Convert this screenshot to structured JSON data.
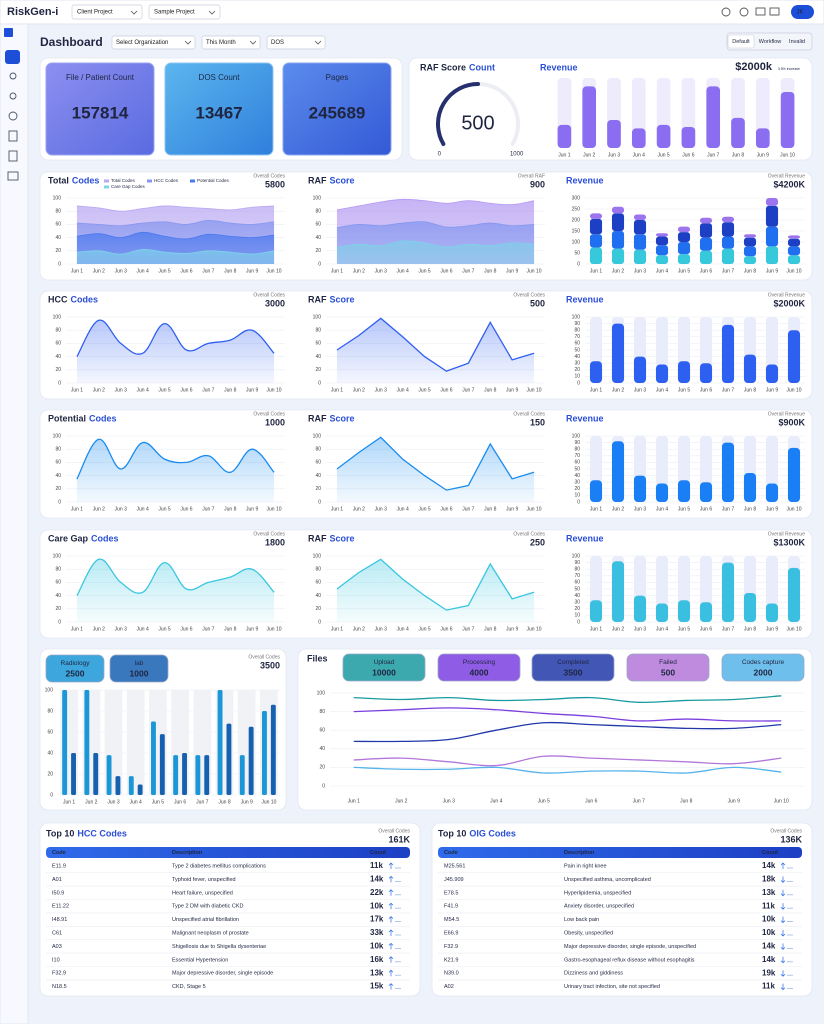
{
  "header": {
    "logo": "RiskGen-i",
    "client": "Client Project",
    "project": "Sample Project",
    "user": "JK"
  },
  "toolbar": {
    "title": "Dashboard",
    "filters": [
      "Select Organization",
      "This Month",
      "DOS"
    ],
    "views": [
      "Default",
      "Workflow",
      "Invalid"
    ],
    "active_view": 0
  },
  "kpis": [
    {
      "label": "File / Patient Count",
      "value": 157814
    },
    {
      "label": "DOS Count",
      "value": 13467
    },
    {
      "label": "Pages",
      "value": 245689
    }
  ],
  "chart_data": [
    {
      "type": "gauge",
      "title": "RAF Score",
      "title_accent": "Count",
      "value": 500,
      "ylim": [
        0,
        1000
      ],
      "yticks": [
        0,
        1000
      ],
      "color": "#27306e"
    },
    {
      "type": "bar",
      "title_accent": "Revenue",
      "value_text": "$2000k",
      "note": "3.5% increase",
      "categories": [
        "Jun 1",
        "Jun 2",
        "Jun 3",
        "Jun 4",
        "Jun 5",
        "Jun 6",
        "Jun 7",
        "Jun 8",
        "Jun 9",
        "Jun 10"
      ],
      "values": [
        33,
        88,
        40,
        28,
        33,
        30,
        88,
        43,
        28,
        80
      ],
      "ylim": [
        0,
        100
      ],
      "color": "#8a6df0"
    },
    {
      "type": "area",
      "smooth": true,
      "title": "Total",
      "title_accent": "Codes",
      "overall_label": "Overall Codes",
      "overall_value": 5800,
      "legend": true,
      "grid": true,
      "categories": [
        "Jun 1",
        "Jun 2",
        "Jun 3",
        "Jun 4",
        "Jun 5",
        "Jun 6",
        "Jun 7",
        "Jun 8",
        "Jun 9",
        "Jun 10"
      ],
      "ylim": [
        0,
        100
      ],
      "yticks": [
        0,
        20,
        40,
        60,
        80,
        100
      ],
      "series": [
        {
          "name": "Total Codes",
          "color": "#b9a8f2",
          "values": [
            88,
            85,
            80,
            84,
            88,
            86,
            84,
            82,
            86,
            88
          ]
        },
        {
          "name": "HCC Codes",
          "color": "#8797ef",
          "values": [
            62,
            60,
            58,
            62,
            64,
            60,
            66,
            62,
            60,
            64
          ]
        },
        {
          "name": "Potential Codes",
          "color": "#4a78ee",
          "values": [
            42,
            46,
            40,
            48,
            42,
            38,
            45,
            42,
            40,
            44
          ]
        },
        {
          "name": "Care Gap Codes",
          "color": "#7fd3ea",
          "values": [
            18,
            20,
            15,
            22,
            18,
            16,
            20,
            18,
            15,
            20
          ]
        }
      ]
    },
    {
      "type": "area",
      "smooth": true,
      "title": "RAF",
      "title_accent": "Score",
      "overall_label": "Overall RAF",
      "overall_value": 900,
      "grid": true,
      "categories": [
        "Jun 1",
        "Jun 2",
        "Jun 3",
        "Jun 4",
        "Jun 5",
        "Jun 6",
        "Jun 7",
        "Jun 8",
        "Jun 9",
        "Jun 10"
      ],
      "ylim": [
        0,
        100
      ],
      "yticks": [
        0,
        20,
        40,
        60,
        80,
        100
      ],
      "series": [
        {
          "color": "#b39af2",
          "values": [
            82,
            88,
            94,
            98,
            96,
            92,
            96,
            92,
            90,
            96
          ]
        },
        {
          "color": "#8497ef",
          "values": [
            55,
            60,
            58,
            62,
            64,
            56,
            58,
            62,
            58,
            60
          ]
        },
        {
          "color": "#7fd0e8",
          "values": [
            25,
            30,
            28,
            35,
            32,
            26,
            30,
            28,
            32,
            30
          ]
        }
      ]
    },
    {
      "type": "stacked_bar",
      "title_accent": "Revenue",
      "overall_label": "Overall Revenue",
      "overall_value": "$4200K",
      "grid": true,
      "categories": [
        "Jun 1",
        "Jun 2",
        "Jun 3",
        "Jun 4",
        "Jun 5",
        "Jun 6",
        "Jun 7",
        "Jun 8",
        "Jun 9",
        "Jun 10"
      ],
      "ylim": [
        0,
        300
      ],
      "yticks": [
        0,
        50,
        100,
        150,
        200,
        250,
        300
      ],
      "series": [
        {
          "color": "#38c8dc",
          "values": [
            75,
            70,
            65,
            40,
            45,
            60,
            70,
            35,
            80,
            40
          ]
        },
        {
          "color": "#1f6ff0",
          "values": [
            60,
            80,
            70,
            45,
            55,
            60,
            55,
            45,
            90,
            40
          ]
        },
        {
          "color": "#1d3fc4",
          "values": [
            70,
            80,
            65,
            40,
            45,
            65,
            65,
            40,
            95,
            35
          ]
        },
        {
          "color": "#9b74ee",
          "values": [
            25,
            30,
            25,
            15,
            25,
            25,
            25,
            15,
            35,
            15
          ]
        }
      ]
    },
    {
      "type": "area",
      "smooth": true,
      "title": "HCC",
      "title_accent": "Codes",
      "overall_label": "Overall Codes",
      "overall_value": 3000,
      "grid": true,
      "categories": [
        "Jun 1",
        "Jun 2",
        "Jun 3",
        "Jun 4",
        "Jun 5",
        "Jun 6",
        "Jun 7",
        "Jun 8",
        "Jun 9",
        "Jun 10"
      ],
      "ylim": [
        0,
        100
      ],
      "yticks": [
        0,
        20,
        40,
        60,
        80,
        100
      ],
      "series": [
        {
          "color": "#2f5ff0",
          "values": [
            40,
            95,
            60,
            45,
            90,
            50,
            60,
            65,
            80,
            45
          ]
        }
      ]
    },
    {
      "type": "area",
      "smooth": false,
      "title": "RAF",
      "title_accent": "Score",
      "overall_label": "Overall Codes",
      "overall_value": 500,
      "grid": true,
      "categories": [
        "Jun 1",
        "Jun 2",
        "Jun 3",
        "Jun 4",
        "Jun 5",
        "Jun 6",
        "Jun 7",
        "Jun 8",
        "Jun 9",
        "Jun 10"
      ],
      "ylim": [
        0,
        100
      ],
      "yticks": [
        0,
        20,
        40,
        60,
        80,
        100
      ],
      "series": [
        {
          "color": "#2f5ff0",
          "values": [
            50,
            72,
            98,
            70,
            40,
            18,
            30,
            92,
            35,
            45
          ]
        }
      ]
    },
    {
      "type": "bar",
      "title_accent": "Revenue",
      "overall_label": "Overall Revenue",
      "overall_value": "$2000K",
      "grid": true,
      "categories": [
        "Jun 1",
        "Jun 2",
        "Jun 3",
        "Jun 4",
        "Jun 5",
        "Jun 6",
        "Jun 7",
        "Jun 8",
        "Jun 9",
        "Jun 10"
      ],
      "ylim": [
        0,
        100
      ],
      "yticks": [
        0,
        10,
        20,
        30,
        40,
        50,
        60,
        70,
        80,
        90,
        100
      ],
      "color": "#2d5ff0",
      "values": [
        33,
        90,
        40,
        28,
        33,
        30,
        88,
        43,
        28,
        80
      ]
    },
    {
      "type": "area",
      "smooth": true,
      "title": "Potential",
      "title_accent": "Codes",
      "overall_label": "Overall Codes",
      "overall_value": 1000,
      "grid": true,
      "categories": [
        "Jun 1",
        "Jun 2",
        "Jun 3",
        "Jun 4",
        "Jun 5",
        "Jun 6",
        "Jun 7",
        "Jun 8",
        "Jun 9",
        "Jun 10"
      ],
      "ylim": [
        0,
        100
      ],
      "yticks": [
        0,
        20,
        40,
        60,
        80,
        100
      ],
      "series": [
        {
          "color": "#1a8cf0",
          "values": [
            35,
            95,
            50,
            90,
            65,
            60,
            70,
            45,
            80,
            45
          ]
        }
      ]
    },
    {
      "type": "area",
      "smooth": false,
      "title": "RAF",
      "title_accent": "Score",
      "overall_label": "Overall Codes",
      "overall_value": 150,
      "grid": true,
      "categories": [
        "Jun 1",
        "Jun 2",
        "Jun 3",
        "Jun 4",
        "Jun 5",
        "Jun 6",
        "Jun 7",
        "Jun 8",
        "Jun 9",
        "Jun 10"
      ],
      "ylim": [
        0,
        100
      ],
      "yticks": [
        0,
        20,
        40,
        60,
        80,
        100
      ],
      "series": [
        {
          "color": "#1a8cf0",
          "values": [
            50,
            75,
            98,
            65,
            40,
            18,
            25,
            88,
            35,
            45
          ]
        }
      ]
    },
    {
      "type": "bar",
      "title_accent": "Revenue",
      "overall_label": "Overall Revenue",
      "overall_value": "$900K",
      "grid": true,
      "categories": [
        "Jun 1",
        "Jun 2",
        "Jun 3",
        "Jun 4",
        "Jun 5",
        "Jun 6",
        "Jun 7",
        "Jun 8",
        "Jun 9",
        "Jun 10"
      ],
      "ylim": [
        0,
        100
      ],
      "yticks": [
        0,
        10,
        20,
        30,
        40,
        50,
        60,
        70,
        80,
        90,
        100
      ],
      "color": "#1a7ff5",
      "values": [
        33,
        92,
        40,
        28,
        33,
        30,
        90,
        44,
        28,
        82
      ]
    },
    {
      "type": "area",
      "smooth": true,
      "title": "Care Gap",
      "title_accent": "Codes",
      "overall_label": "Overall Codes",
      "overall_value": 1800,
      "grid": true,
      "categories": [
        "Jun 1",
        "Jun 2",
        "Jun 3",
        "Jun 4",
        "Jun 5",
        "Jun 6",
        "Jun 7",
        "Jun 8",
        "Jun 9",
        "Jun 10"
      ],
      "ylim": [
        0,
        100
      ],
      "yticks": [
        0,
        20,
        40,
        60,
        80,
        100
      ],
      "series": [
        {
          "color": "#38c6e0",
          "values": [
            40,
            95,
            60,
            45,
            90,
            50,
            60,
            68,
            80,
            45
          ]
        }
      ]
    },
    {
      "type": "area",
      "smooth": false,
      "title": "RAF",
      "title_accent": "Score",
      "overall_label": "Overall Codes",
      "overall_value": 250,
      "grid": true,
      "categories": [
        "Jun 1",
        "Jun 2",
        "Jun 3",
        "Jun 4",
        "Jun 5",
        "Jun 6",
        "Jun 7",
        "Jun 8",
        "Jun 9",
        "Jun 10"
      ],
      "ylim": [
        0,
        100
      ],
      "yticks": [
        0,
        20,
        40,
        60,
        80,
        100
      ],
      "series": [
        {
          "color": "#38c6e0",
          "values": [
            50,
            75,
            95,
            65,
            40,
            18,
            25,
            88,
            35,
            45
          ]
        }
      ]
    },
    {
      "type": "bar",
      "title_accent": "Revenue",
      "overall_label": "Overall Revenue",
      "overall_value": "$1300K",
      "grid": true,
      "categories": [
        "Jun 1",
        "Jun 2",
        "Jun 3",
        "Jun 4",
        "Jun 5",
        "Jun 6",
        "Jun 7",
        "Jun 8",
        "Jun 9",
        "Jun 10"
      ],
      "ylim": [
        0,
        100
      ],
      "yticks": [
        0,
        10,
        20,
        30,
        40,
        50,
        60,
        70,
        80,
        90,
        100
      ],
      "color": "#3bbfe0",
      "values": [
        33,
        92,
        40,
        28,
        33,
        30,
        90,
        44,
        28,
        82
      ]
    },
    {
      "type": "grouped_bar",
      "overall_label": "Overall Codes",
      "overall_value": 3500,
      "grid": true,
      "categories": [
        "Jun 1",
        "Jun 2",
        "Jun 3",
        "Jun 4",
        "Jun 5",
        "Jun 6",
        "Jun 7",
        "Jun 8",
        "Jun 9",
        "Jun 10"
      ],
      "ylim": [
        0,
        100
      ],
      "yticks": [
        0,
        20,
        40,
        60,
        80,
        100
      ],
      "series": [
        {
          "name": "Radiology",
          "total": 2500,
          "color": "#1b96d6",
          "values": [
            100,
            100,
            38,
            18,
            70,
            38,
            38,
            100,
            38,
            80
          ]
        },
        {
          "name": "lab",
          "total": 1000,
          "color": "#1660b0",
          "values": [
            40,
            40,
            18,
            10,
            58,
            40,
            38,
            68,
            65,
            86
          ]
        }
      ]
    },
    {
      "type": "line",
      "smooth": true,
      "title": "Files",
      "grid": true,
      "categories": [
        "Jun 1",
        "Jun 2",
        "Jun 3",
        "Jun 4",
        "Jun 5",
        "Jun 6",
        "Jun 7",
        "Jun 8",
        "Jun 9",
        "Jun 10"
      ],
      "ylim": [
        0,
        100
      ],
      "yticks": [
        0,
        20,
        40,
        60,
        80,
        100
      ],
      "series": [
        {
          "name": "Upload",
          "total": 10000,
          "color": "#1a9aa0",
          "values": [
            95,
            93,
            95,
            92,
            93,
            95,
            90,
            92,
            93,
            97
          ]
        },
        {
          "name": "Processing",
          "total": 4000,
          "color": "#7b3fe0",
          "values": [
            80,
            82,
            84,
            82,
            78,
            75,
            70,
            72,
            70,
            70
          ]
        },
        {
          "name": "Completed",
          "total": 3500,
          "color": "#2038a8",
          "values": [
            48,
            48,
            50,
            60,
            68,
            66,
            64,
            62,
            62,
            66
          ]
        },
        {
          "name": "Failed",
          "total": 500,
          "color": "#b377d9",
          "values": [
            28,
            30,
            26,
            22,
            32,
            30,
            28,
            26,
            24,
            30
          ]
        },
        {
          "name": "Codes capture",
          "total": 2000,
          "color": "#56b4ea",
          "values": [
            20,
            18,
            18,
            20,
            14,
            16,
            16,
            14,
            20,
            15
          ]
        }
      ]
    }
  ],
  "tables": [
    {
      "title": "Top 10",
      "title_accent": "HCC Codes",
      "overall_label": "Overall Codes",
      "overall_value": "161K",
      "columns": [
        "Code",
        "Description",
        "Count"
      ],
      "rows": [
        [
          "E11.9",
          "Type 2 diabetes mellitus complications",
          "11k"
        ],
        [
          "A01",
          "Typhoid fever, unspecified",
          "14k"
        ],
        [
          "I50.9",
          "Heart failure, unspecified",
          "22k"
        ],
        [
          "E11.22",
          "Type 2 DM with diabetic CKD",
          "10k"
        ],
        [
          "I48.91",
          "Unspecified atrial fibrillation",
          "17k"
        ],
        [
          "C61",
          "Malignant neoplasm of prostate",
          "33k"
        ],
        [
          "A03",
          "Shigellosis due to Shigella dysenteriae",
          "10k"
        ],
        [
          "I10",
          "Essential Hypertension",
          "16k"
        ],
        [
          "F32.9",
          "Major depressive disorder, single episode",
          "13k"
        ],
        [
          "N18.5",
          "CKD, Stage 5",
          "15k"
        ]
      ],
      "trends": [
        "up",
        "up",
        "up",
        "up",
        "up",
        "up",
        "up",
        "up",
        "up",
        "up"
      ]
    },
    {
      "title": "Top 10",
      "title_accent": "OIG Codes",
      "overall_label": "Overall Codes",
      "overall_value": "136K",
      "columns": [
        "Code",
        "Description",
        "Count"
      ],
      "rows": [
        [
          "M25.561",
          "Pain in right knee",
          "14k"
        ],
        [
          "J45.909",
          "Unspecified asthma, uncomplicated",
          "18k"
        ],
        [
          "E78.5",
          "Hyperlipidemia, unspecified",
          "13k"
        ],
        [
          "F41.9",
          "Anxiety disorder, unspecified",
          "11k"
        ],
        [
          "M54.5",
          "Low back pain",
          "10k"
        ],
        [
          "E66.9",
          "Obesity, unspecified",
          "10k"
        ],
        [
          "F32.9",
          "Major depressive disorder, single episode, unspecified",
          "14k"
        ],
        [
          "K21.9",
          "Gastro-esophageal reflux disease without esophagitis",
          "14k"
        ],
        [
          "N39.0",
          "Dizziness and giddiness",
          "19k"
        ],
        [
          "A02",
          "Urinary tract infection, site not specified",
          "11k"
        ]
      ],
      "trends": [
        "up",
        "down",
        "down",
        "down",
        "down",
        "down",
        "down",
        "down",
        "down",
        "down"
      ]
    }
  ]
}
